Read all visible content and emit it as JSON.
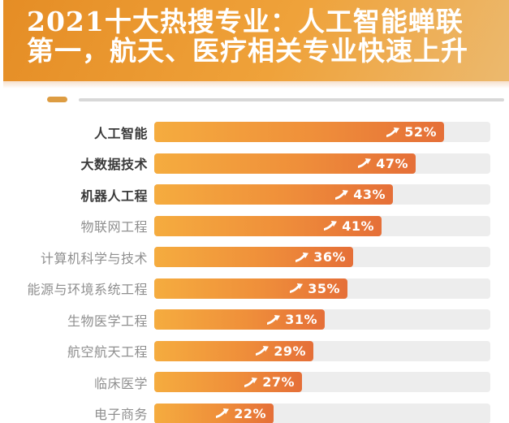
{
  "header": {
    "title_line1": "2021十大热搜专业：人工智能蝉联",
    "title_line2": "第一，航天、医疗相关专业快速上升",
    "background_left": "#e58d25",
    "background_right": "#ecb96e",
    "text_color": "#ffffff"
  },
  "divider": {
    "dash_color": "#dd9c42",
    "line_color": "#d8d8d8"
  },
  "chart_data": {
    "type": "bar",
    "orientation": "horizontal",
    "title": "2021十大热搜专业：人工智能蝉联第一，航天、医疗相关专业快速上升",
    "unit": "%",
    "xlim": [
      0,
      60
    ],
    "grid": false,
    "legend": false,
    "categories": [
      "人工智能",
      "大数据技术",
      "机器人工程",
      "物联网工程",
      "计算机科学与技术",
      "能源与环境系统工程",
      "生物医学工程",
      "航空航天工程",
      "临床医学",
      "电子商务"
    ],
    "values": [
      52,
      47,
      43,
      41,
      36,
      35,
      31,
      29,
      27,
      22
    ],
    "value_labels": [
      "52%",
      "47%",
      "43%",
      "41%",
      "36%",
      "35%",
      "31%",
      "29%",
      "27%",
      "22%"
    ],
    "bold_rows": [
      0,
      1,
      2
    ],
    "bar_color_left": "#f5ac3f",
    "bar_color_right": "#e56f38",
    "track_color": "#ededed",
    "label_color_bold": "#3a3a3a",
    "label_color_regular": "#8f8f8f",
    "value_icon": "trend-up-arrow"
  }
}
